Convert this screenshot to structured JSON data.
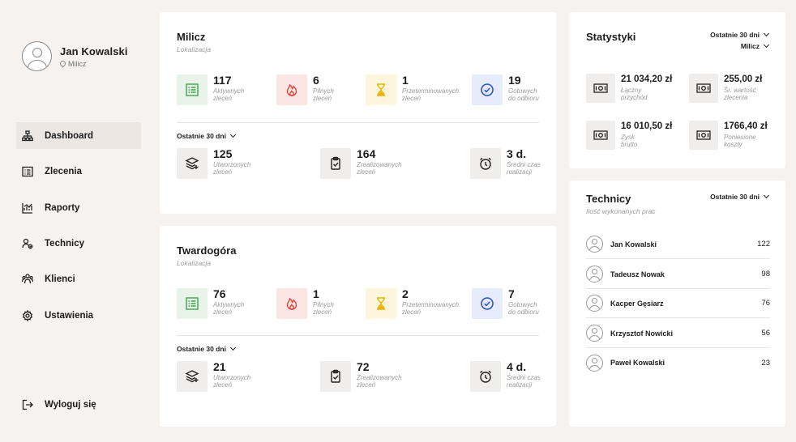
{
  "user": {
    "name": "Jan Kowalski",
    "location": "Milicz"
  },
  "nav": [
    {
      "label": "Dashboard",
      "icon": "sitemap-icon",
      "active": true
    },
    {
      "label": "Zlecenia",
      "icon": "list-icon"
    },
    {
      "label": "Raporty",
      "icon": "chart-icon"
    },
    {
      "label": "Technicy",
      "icon": "users-icon"
    },
    {
      "label": "Klienci",
      "icon": "clients-icon"
    },
    {
      "label": "Ustawienia",
      "icon": "gear-icon"
    }
  ],
  "logout": {
    "label": "Wyloguj się",
    "icon": "logout-icon"
  },
  "locations": [
    {
      "title": "Milicz",
      "subtitle": "Lokalizacja",
      "status": [
        {
          "value": "117",
          "label1": "Aktywnych",
          "label2": "zleceń",
          "icon": "list-icon",
          "color": "#3fa34d",
          "bg": "#e8f4ea"
        },
        {
          "value": "6",
          "label1": "Pilnych",
          "label2": "zleceń",
          "icon": "fire-icon",
          "color": "#e0443c",
          "bg": "#fce6e4"
        },
        {
          "value": "1",
          "label1": "Przeterminowanych",
          "label2": "zleceń",
          "icon": "hourglass-icon",
          "color": "#e6b400",
          "bg": "#fdf5dc"
        },
        {
          "value": "19",
          "label1": "Gotowych",
          "label2": "do odbioru",
          "icon": "check-circle-icon",
          "color": "#2a4ed0",
          "bg": "#e6ecfb"
        }
      ],
      "period": "Ostatnie 30 dni",
      "period_stats": [
        {
          "value": "125",
          "label1": "Utworzonych",
          "label2": "zleceń",
          "icon": "layers-icon"
        },
        {
          "value": "164",
          "label1": "Zrealizowanych",
          "label2": "zleceń",
          "icon": "clipboard-check-icon"
        },
        {
          "value": "3 d.",
          "label1": "Średni czas",
          "label2": "realizacji",
          "icon": "alarm-icon"
        }
      ]
    },
    {
      "title": "Twardogóra",
      "subtitle": "Lokalizacja",
      "status": [
        {
          "value": "76",
          "label1": "Aktywnych",
          "label2": "zleceń",
          "icon": "list-icon",
          "color": "#3fa34d",
          "bg": "#e8f4ea"
        },
        {
          "value": "1",
          "label1": "Pilnych",
          "label2": "zleceń",
          "icon": "fire-icon",
          "color": "#e0443c",
          "bg": "#fce6e4"
        },
        {
          "value": "2",
          "label1": "Przeterminowanych",
          "label2": "zleceń",
          "icon": "hourglass-icon",
          "color": "#e6b400",
          "bg": "#fdf5dc"
        },
        {
          "value": "7",
          "label1": "Gotowych",
          "label2": "do odbioru",
          "icon": "check-circle-icon",
          "color": "#2a4ed0",
          "bg": "#e6ecfb"
        }
      ],
      "period": "Ostatnie 30 dni",
      "period_stats": [
        {
          "value": "21",
          "label1": "Utworzonych",
          "label2": "zleceń",
          "icon": "layers-icon"
        },
        {
          "value": "72",
          "label1": "Zrealizowanych",
          "label2": "zleceń",
          "icon": "clipboard-check-icon"
        },
        {
          "value": "4 d.",
          "label1": "Średni czas",
          "label2": "realizacji",
          "icon": "alarm-icon"
        }
      ]
    }
  ],
  "statistics": {
    "title": "Statystyki",
    "period": "Ostatnie 30 dni",
    "location": "Milicz",
    "items": [
      {
        "value": "21 034,20 zł",
        "label1": "Łączny",
        "label2": "przychód"
      },
      {
        "value": "255,00 zł",
        "label1": "Śr. wartość",
        "label2": "zlecenia"
      },
      {
        "value": "16 010,50 zł",
        "label1": "Zysk",
        "label2": "brutto"
      },
      {
        "value": "1766,40 zł",
        "label1": "Poniesione",
        "label2": "koszty"
      }
    ]
  },
  "technicians": {
    "title": "Technicy",
    "subtitle": "Ilość wykonanych prac",
    "period": "Ostatnie 30 dni",
    "rows": [
      {
        "name": "Jan Kowalski",
        "count": "122"
      },
      {
        "name": "Tadeusz Nowak",
        "count": "98"
      },
      {
        "name": "Kacper Gęsiarz",
        "count": "76"
      },
      {
        "name": "Krzysztof Nowicki",
        "count": "56"
      },
      {
        "name": "Paweł Kowalski",
        "count": "23"
      }
    ]
  }
}
